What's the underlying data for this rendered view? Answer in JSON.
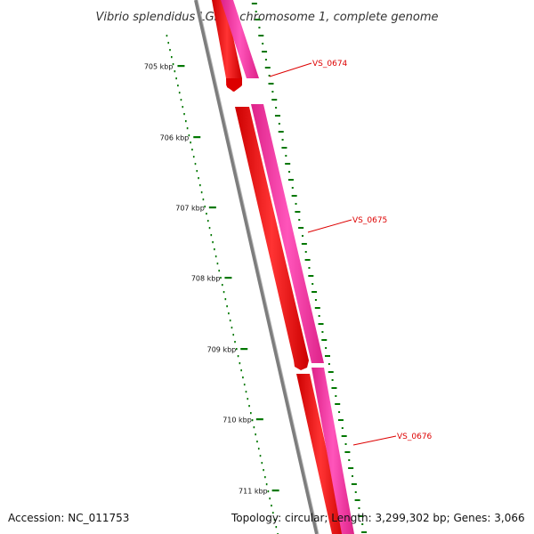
{
  "title": "Vibrio splendidus LGP32 chromosome 1, complete genome",
  "ticks": [
    {
      "label": "705 kbp"
    },
    {
      "label": "706 kbp"
    },
    {
      "label": "707 kbp"
    },
    {
      "label": "708 kbp"
    },
    {
      "label": "709 kbp"
    },
    {
      "label": "710 kbp"
    },
    {
      "label": "711 kbp"
    }
  ],
  "genes": [
    {
      "name": "VS_0674"
    },
    {
      "name": "VS_0675"
    },
    {
      "name": "VS_0676"
    }
  ],
  "footer": {
    "accession": "Accession: NC_011753",
    "topology": "Topology: circular; Length: 3,299,302 bp; Genes: 3,066"
  },
  "colors": {
    "forward_strand": "#ff1111",
    "reverse_strand": "#ff33aa",
    "backbone": "#808080",
    "ticks": "#007700",
    "label_red": "#dd0000"
  }
}
